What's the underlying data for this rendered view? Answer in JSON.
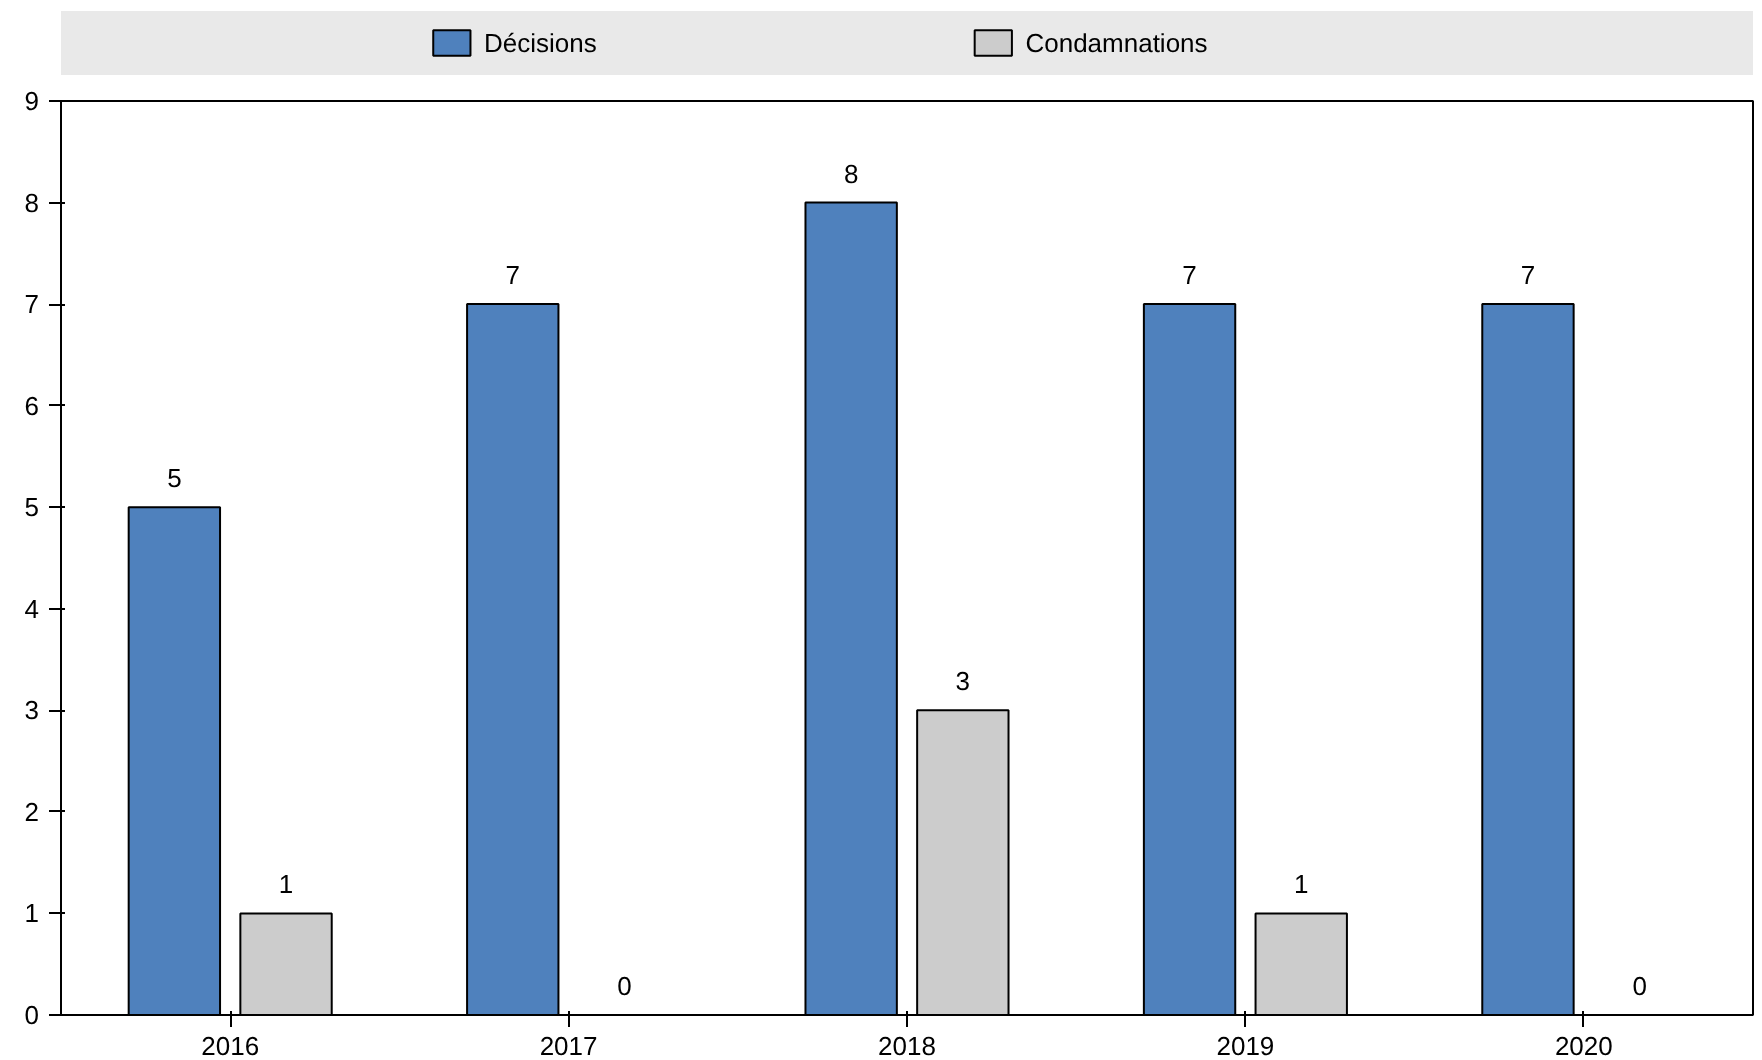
{
  "chart_data": {
    "type": "bar",
    "categories": [
      "2016",
      "2017",
      "2018",
      "2019",
      "2020"
    ],
    "series": [
      {
        "name": "Décisions",
        "color": "#4f81bd",
        "values": [
          5,
          7,
          8,
          7,
          7
        ]
      },
      {
        "name": "Condamnations",
        "color": "#cccccc",
        "values": [
          1,
          0,
          3,
          1,
          0
        ]
      }
    ],
    "ylim": [
      0,
      9
    ],
    "yticks": [
      0,
      1,
      2,
      3,
      4,
      5,
      6,
      7,
      8,
      9
    ],
    "data_labels": true,
    "legend": "top"
  }
}
